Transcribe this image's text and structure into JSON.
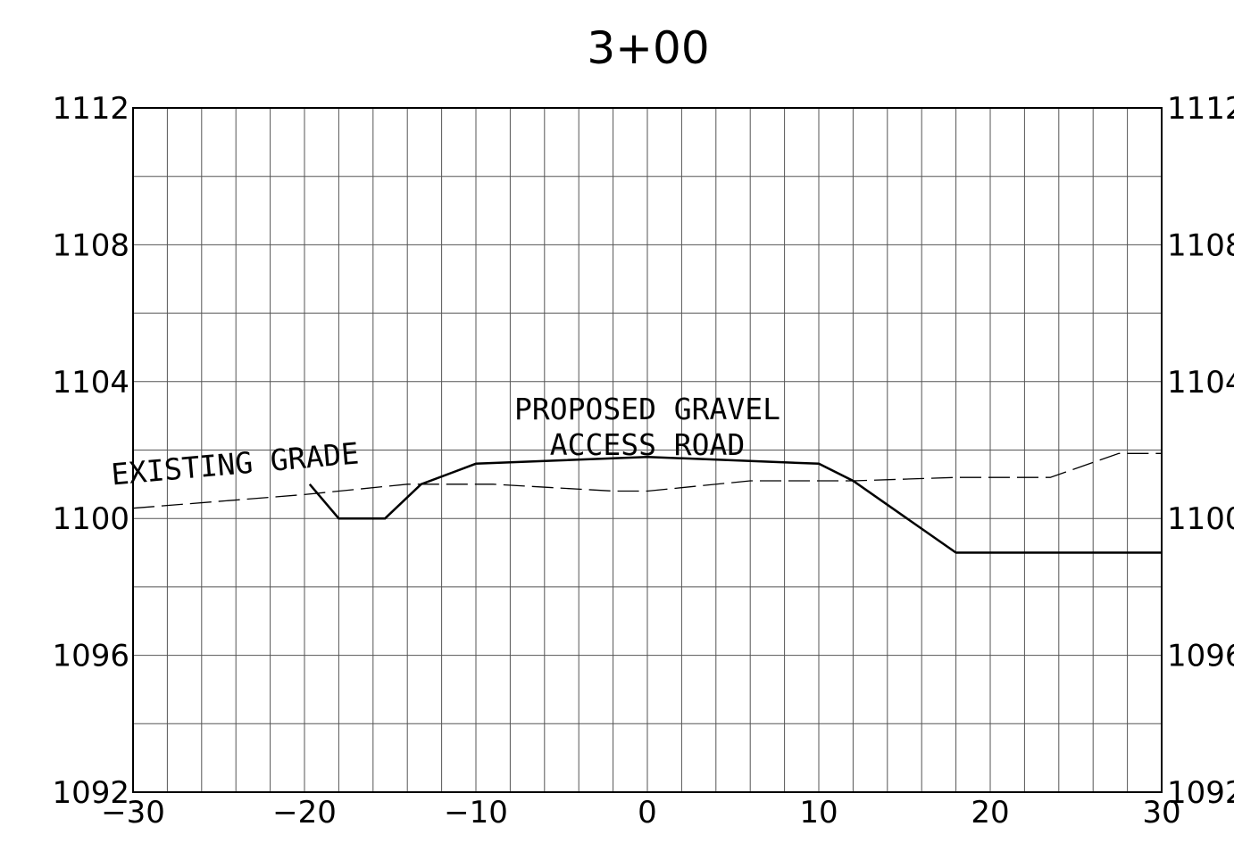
{
  "chart_data": {
    "type": "line",
    "title": "3+00",
    "xlim": [
      -30,
      30
    ],
    "ylim": [
      1092,
      1112
    ],
    "x_ticks": [
      "-30",
      "-20",
      "-10",
      "0",
      "10",
      "20",
      "30"
    ],
    "x_tick_values": [
      -30,
      -20,
      -10,
      0,
      10,
      20,
      30
    ],
    "y_ticks": [
      "1112",
      "1108",
      "1104",
      "1100",
      "1096",
      "1092"
    ],
    "y_tick_values": [
      1112,
      1108,
      1104,
      1100,
      1096,
      1092
    ],
    "grid": true,
    "grid_x_step": 2,
    "grid_y_step": 2,
    "series": [
      {
        "style": "dashed",
        "x": [
          -30,
          -20,
          -14,
          -9,
          -2,
          0,
          6,
          12,
          18,
          23.5,
          27.5,
          30
        ],
        "y": [
          1100.3,
          1100.7,
          1101,
          1101,
          1100.8,
          1100.8,
          1101.1,
          1101.1,
          1101.2,
          1101.2,
          1101.9,
          1101.9
        ]
      },
      {
        "style": "solid",
        "x": [
          -19.7,
          -18,
          -15.3,
          -13.2,
          -10,
          0,
          10,
          12,
          18,
          30
        ],
        "y": [
          1101,
          1100,
          1100,
          1101,
          1101.6,
          1101.8,
          1101.6,
          1101.1,
          1099,
          1099
        ]
      }
    ],
    "annotations": [
      {
        "lines": [
          "EXISTING GRADE"
        ],
        "x": -24,
        "y": 1101.3,
        "rotation": -5
      },
      {
        "lines": [
          "PROPOSED GRAVEL",
          "ACCESS ROAD"
        ],
        "x": 0,
        "y": 1102.9,
        "rotation": 0
      }
    ]
  }
}
